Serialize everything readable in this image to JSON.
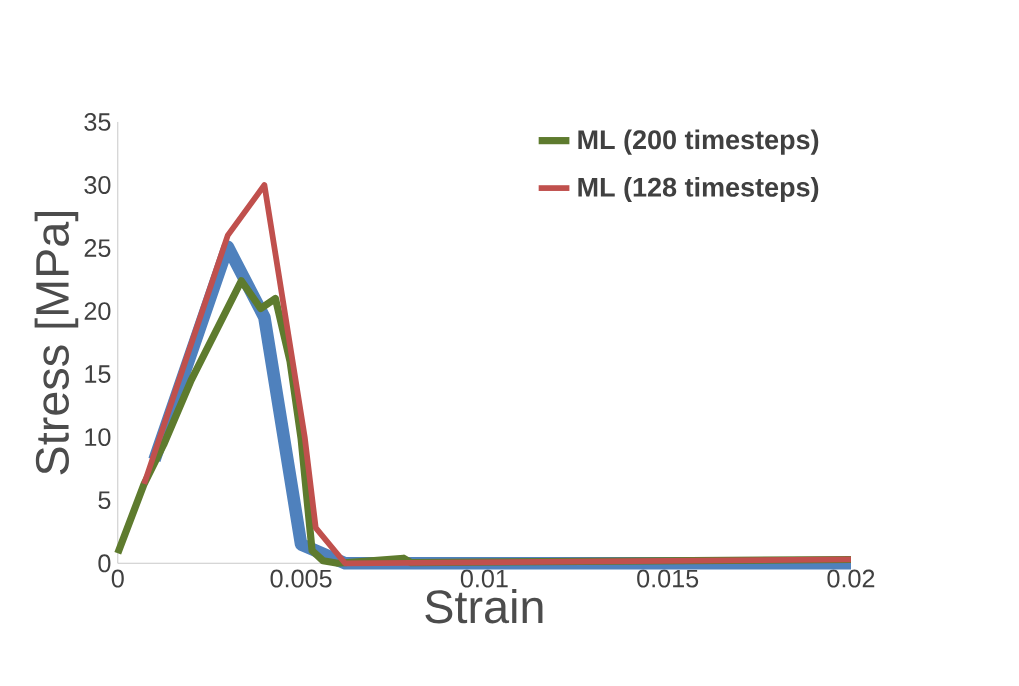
{
  "chart_data": {
    "type": "line",
    "xlabel": "Strain",
    "ylabel": "Stress [MPa]",
    "xlim": [
      0,
      0.02
    ],
    "ylim": [
      0,
      35
    ],
    "xticks": [
      0,
      0.005,
      0.01,
      0.015,
      0.02
    ],
    "yticks": [
      0,
      5,
      10,
      15,
      20,
      25,
      30,
      35
    ],
    "grid": false,
    "legend": "top right",
    "marker": "none",
    "line_style": "solid",
    "series": [
      {
        "color": "#4f81bd",
        "x": [
          0.001,
          0.003,
          0.004,
          0.005,
          0.0062,
          0.02
        ],
        "values": [
          8.2,
          25.1,
          19.5,
          1.5,
          0,
          0
        ]
      },
      {
        "name": "ML (200 timesteps)",
        "color": "#5e7b2e",
        "x": [
          0,
          0.00072,
          0.00125,
          0.002,
          0.00337,
          0.0039,
          0.0043,
          0.0047,
          0.005,
          0.0053,
          0.0056,
          0.006,
          0.0078,
          0.008,
          0.02
        ],
        "values": [
          0.8,
          6.3,
          9.4,
          14.5,
          22.4,
          20.2,
          21,
          16,
          9.9,
          1,
          0.2,
          0,
          0.4,
          0.05,
          0.3
        ]
      },
      {
        "name": "ML (128 timesteps)",
        "color": "#c0504d",
        "x": [
          0.00072,
          0.003,
          0.004,
          0.0051,
          0.0054,
          0.0062,
          0.02
        ],
        "values": [
          6.3,
          26,
          30,
          10,
          2.8,
          0,
          0.3
        ]
      }
    ]
  }
}
